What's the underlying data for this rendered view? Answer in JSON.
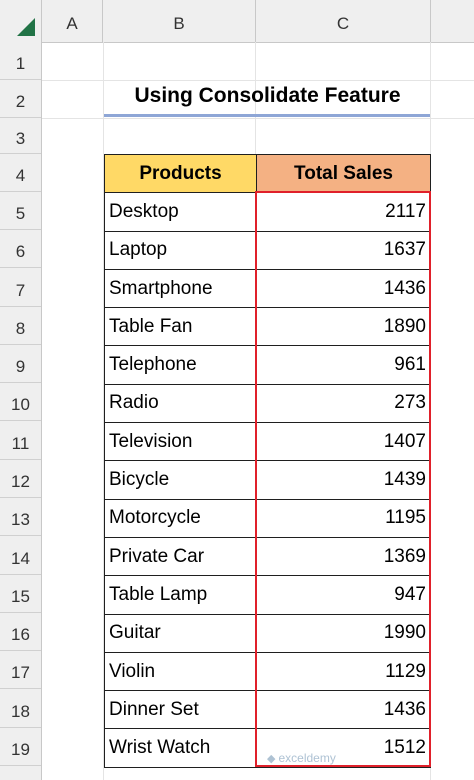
{
  "columns": [
    "A",
    "B",
    "C"
  ],
  "rows": [
    "1",
    "2",
    "3",
    "4",
    "5",
    "6",
    "7",
    "8",
    "9",
    "10",
    "11",
    "12",
    "13",
    "14",
    "15",
    "16",
    "17",
    "18",
    "19"
  ],
  "title": "Using Consolidate Feature",
  "table": {
    "headers": {
      "products": "Products",
      "total_sales": "Total Sales"
    },
    "rows": [
      {
        "product": "Desktop",
        "sales": "2117"
      },
      {
        "product": "Laptop",
        "sales": "1637"
      },
      {
        "product": "Smartphone",
        "sales": "1436"
      },
      {
        "product": "Table Fan",
        "sales": "1890"
      },
      {
        "product": "Telephone",
        "sales": "961"
      },
      {
        "product": "Radio",
        "sales": "273"
      },
      {
        "product": "Television",
        "sales": "1407"
      },
      {
        "product": "Bicycle",
        "sales": "1439"
      },
      {
        "product": "Motorcycle",
        "sales": "1195"
      },
      {
        "product": "Private Car",
        "sales": "1369"
      },
      {
        "product": "Table Lamp",
        "sales": "947"
      },
      {
        "product": "Guitar",
        "sales": "1990"
      },
      {
        "product": "Violin",
        "sales": "1129"
      },
      {
        "product": "Dinner Set",
        "sales": "1436"
      },
      {
        "product": "Wrist Watch",
        "sales": "1512"
      }
    ]
  },
  "watermark": "exceldemy",
  "colors": {
    "products_header": "#ffd966",
    "sales_header": "#f4b183",
    "highlight_border": "#e0202a",
    "title_underline": "#8ea6d6",
    "select_all_triangle": "#217346"
  },
  "icons": {
    "select_all": "select-all-triangle-icon"
  }
}
